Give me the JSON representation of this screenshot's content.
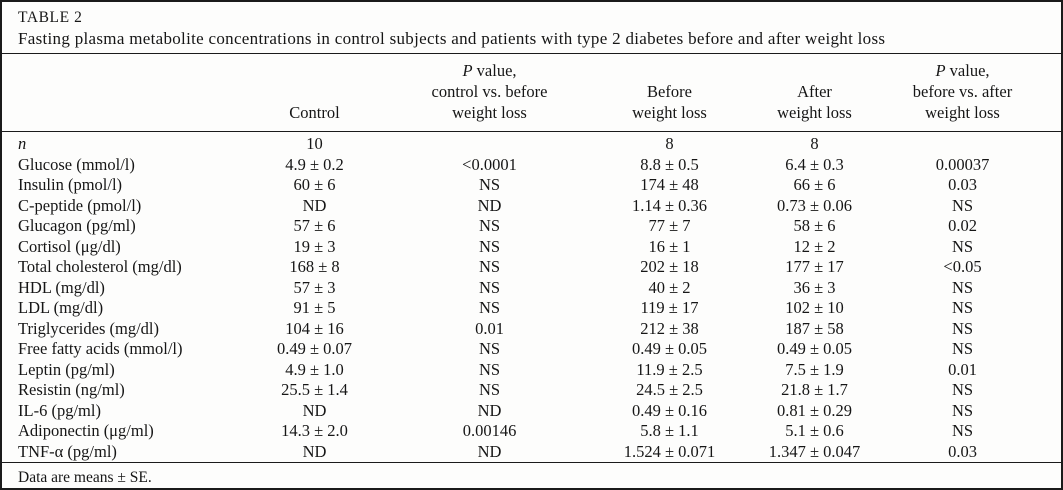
{
  "table": {
    "label": "TABLE 2",
    "caption": "Fasting plasma metabolite concentrations in control subjects and patients with type 2 diabetes before and after weight loss",
    "headers": {
      "control": "Control",
      "p1": {
        "italic": "P",
        "rest": " value,",
        "line2": "control vs. before",
        "line3": "weight loss"
      },
      "before": {
        "line1": "Before",
        "line2": "weight loss"
      },
      "after": {
        "line1": "After",
        "line2": "weight loss"
      },
      "p2": {
        "italic": "P",
        "rest": " value,",
        "line2": "before vs. after",
        "line3": "weight loss"
      }
    },
    "rows": [
      {
        "label": "n",
        "italic": true,
        "values": [
          "10",
          "",
          "8",
          "8",
          ""
        ]
      },
      {
        "label": "Glucose (mmol/l)",
        "values": [
          "4.9 ± 0.2",
          "<0.0001",
          "8.8 ± 0.5",
          "6.4 ± 0.3",
          "0.00037"
        ]
      },
      {
        "label": "Insulin (pmol/l)",
        "values": [
          "60 ± 6",
          "NS",
          "174 ± 48",
          "66 ± 6",
          "0.03"
        ]
      },
      {
        "label": "C-peptide (pmol/l)",
        "values": [
          "ND",
          "ND",
          "1.14 ± 0.36",
          "0.73 ± 0.06",
          "NS"
        ]
      },
      {
        "label": "Glucagon (pg/ml)",
        "values": [
          "57 ± 6",
          "NS",
          "77 ± 7",
          "58 ± 6",
          "0.02"
        ]
      },
      {
        "label": "Cortisol (μg/dl)",
        "values": [
          "19 ± 3",
          "NS",
          "16 ± 1",
          "12 ± 2",
          "NS"
        ]
      },
      {
        "label": "Total cholesterol (mg/dl)",
        "values": [
          "168 ± 8",
          "NS",
          "202 ± 18",
          "177 ± 17",
          "<0.05"
        ]
      },
      {
        "label": "HDL (mg/dl)",
        "values": [
          "57 ± 3",
          "NS",
          "40 ± 2",
          "36 ± 3",
          "NS"
        ]
      },
      {
        "label": "LDL (mg/dl)",
        "values": [
          "91 ± 5",
          "NS",
          "119 ± 17",
          "102 ± 10",
          "NS"
        ]
      },
      {
        "label": "Triglycerides (mg/dl)",
        "values": [
          "104 ± 16",
          "0.01",
          "212 ± 38",
          "187 ± 58",
          "NS"
        ]
      },
      {
        "label": "Free fatty acids (mmol/l)",
        "values": [
          "0.49 ± 0.07",
          "NS",
          "0.49 ± 0.05",
          "0.49 ± 0.05",
          "NS"
        ]
      },
      {
        "label": "Leptin (pg/ml)",
        "values": [
          "4.9 ± 1.0",
          "NS",
          "11.9 ± 2.5",
          "7.5 ± 1.9",
          "0.01"
        ]
      },
      {
        "label": "Resistin (ng/ml)",
        "values": [
          "25.5 ± 1.4",
          "NS",
          "24.5 ± 2.5",
          "21.8 ± 1.7",
          "NS"
        ]
      },
      {
        "label": "IL-6 (pg/ml)",
        "values": [
          "ND",
          "ND",
          "0.49 ± 0.16",
          "0.81 ± 0.29",
          "NS"
        ]
      },
      {
        "label": "Adiponectin (μg/ml)",
        "values": [
          "14.3 ± 2.0",
          "0.00146",
          "5.8 ± 1.1",
          "5.1 ± 0.6",
          "NS"
        ]
      },
      {
        "label": "TNF-α (pg/ml)",
        "values": [
          "ND",
          "ND",
          "1.524 ± 0.071",
          "1.347 ± 0.047",
          "0.03"
        ]
      }
    ],
    "footnote": "Data are means ± SE."
  }
}
